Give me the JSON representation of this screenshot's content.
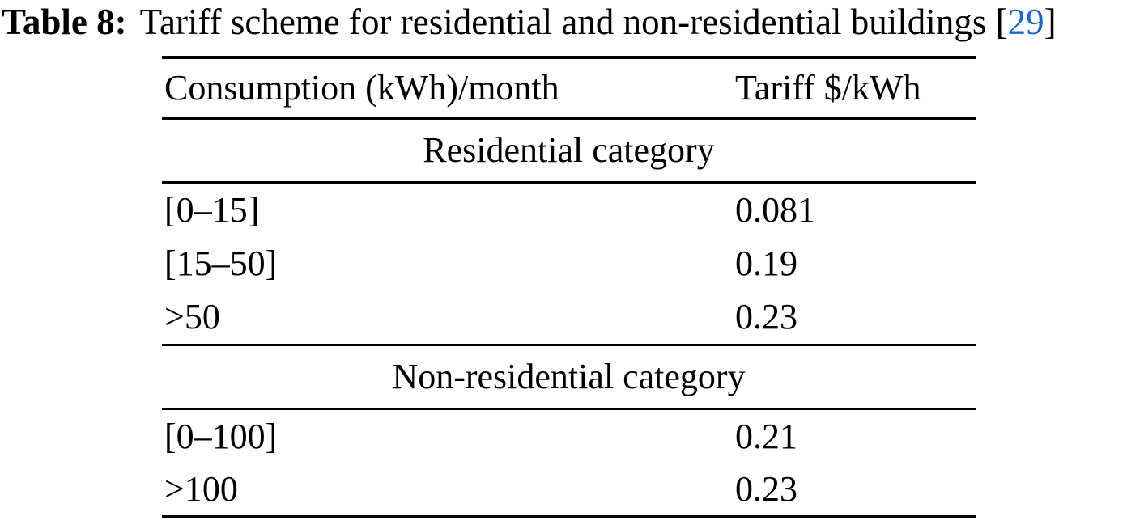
{
  "caption": {
    "label": "Table 8:",
    "text": "Tariff scheme for residential and non-residential buildings",
    "citation_open": "[",
    "citation_number": "29",
    "citation_close": "]"
  },
  "table": {
    "columns": [
      "Consumption (kWh)/month",
      "Tariff $/kWh"
    ],
    "sections": [
      {
        "title": "Residential category",
        "rows": [
          {
            "consumption": "[0–15]",
            "tariff": "0.081"
          },
          {
            "consumption": "[15–50]",
            "tariff": "0.19"
          },
          {
            "consumption": ">50",
            "tariff": "0.23"
          }
        ]
      },
      {
        "title": "Non-residential category",
        "rows": [
          {
            "consumption": "[0–100]",
            "tariff": "0.21"
          },
          {
            "consumption": ">100",
            "tariff": "0.23"
          }
        ]
      }
    ]
  },
  "colors": {
    "citation_blue": "#1766d1",
    "text": "#000000",
    "background": "#ffffff"
  }
}
